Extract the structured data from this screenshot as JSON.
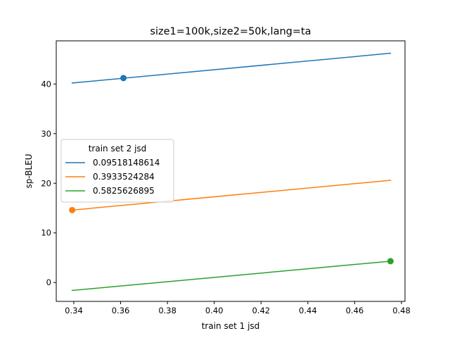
{
  "chart_data": {
    "type": "line",
    "title": "size1=100k,size2=50k,lang=ta",
    "xlabel": "train set 1 jsd",
    "ylabel": "sp-BLEU",
    "xlim": [
      0.3325,
      0.4815
    ],
    "ylim": [
      -3.8,
      48.7
    ],
    "xticks": [
      0.34,
      0.36,
      0.38,
      0.4,
      0.42,
      0.44,
      0.46,
      0.48
    ],
    "xtick_labels": [
      "0.34",
      "0.36",
      "0.38",
      "0.40",
      "0.42",
      "0.44",
      "0.46",
      "0.48"
    ],
    "yticks": [
      0,
      10,
      20,
      30,
      40
    ],
    "ytick_labels": [
      "0",
      "10",
      "20",
      "30",
      "40"
    ],
    "grid": false,
    "legend": {
      "title": "train set 2 jsd",
      "placement": "center-left"
    },
    "series": [
      {
        "name": "0.09518148614",
        "color": "#1f77b4",
        "line": [
          [
            0.3393,
            40.2
          ],
          [
            0.4753,
            46.2
          ]
        ],
        "point": [
          0.3612,
          41.2
        ]
      },
      {
        "name": "0.3933524284",
        "color": "#ff7f0e",
        "line": [
          [
            0.3393,
            14.6
          ],
          [
            0.4753,
            20.6
          ]
        ],
        "point": [
          0.3393,
          14.6
        ]
      },
      {
        "name": "0.5825626895",
        "color": "#2ca02c",
        "line": [
          [
            0.3393,
            -1.6
          ],
          [
            0.4753,
            4.3
          ]
        ],
        "point": [
          0.4753,
          4.3
        ]
      }
    ]
  }
}
